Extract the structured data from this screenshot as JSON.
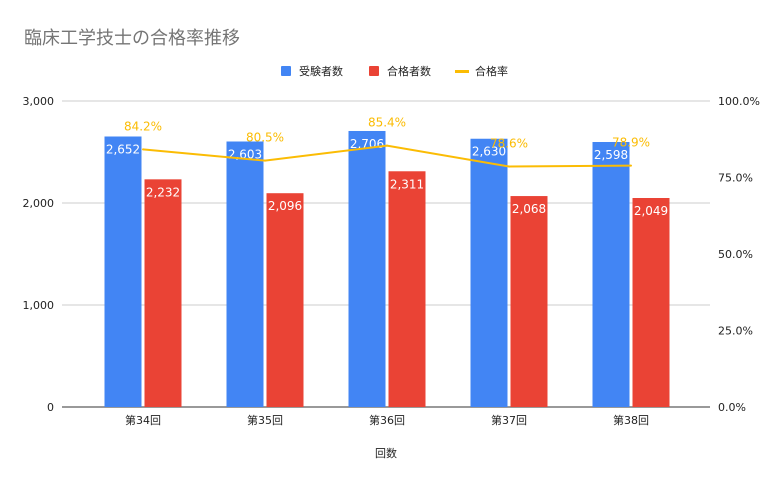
{
  "chart_data": {
    "type": "bar",
    "title": "臨床工学技士の合格率推移",
    "xlabel": "回数",
    "ylabel": "",
    "categories": [
      "第34回",
      "第35回",
      "第36回",
      "第37回",
      "第38回"
    ],
    "series": [
      {
        "name": "受験者数",
        "type": "bar",
        "axis": "left",
        "color": "#4285f4",
        "values": [
          2652,
          2603,
          2706,
          2630,
          2598
        ],
        "labels": [
          "2,652",
          "2,603",
          "2,706",
          "2,630",
          "2,598"
        ]
      },
      {
        "name": "合格者数",
        "type": "bar",
        "axis": "left",
        "color": "#ea4335",
        "values": [
          2232,
          2096,
          2311,
          2068,
          2049
        ],
        "labels": [
          "2,232",
          "2,096",
          "2,311",
          "2,068",
          "2,049"
        ]
      },
      {
        "name": "合格率",
        "type": "line",
        "axis": "right",
        "color": "#fbbc04",
        "values": [
          84.2,
          80.5,
          85.4,
          78.6,
          78.9
        ],
        "labels": [
          "84.2%",
          "80.5%",
          "85.4%",
          "78.6%",
          "78.9%"
        ]
      }
    ],
    "ylim": [
      0,
      3000
    ],
    "y_ticks": [
      0,
      1000,
      2000,
      3000
    ],
    "y_tick_labels": [
      "0",
      "1,000",
      "2,000",
      "3,000"
    ],
    "y2lim": [
      0,
      100
    ],
    "y2_ticks": [
      0,
      25,
      50,
      75,
      100
    ],
    "y2_tick_labels": [
      "0.0%",
      "25.0%",
      "50.0%",
      "75.0%",
      "100.0%"
    ],
    "grid": true,
    "legend": "top-center"
  }
}
